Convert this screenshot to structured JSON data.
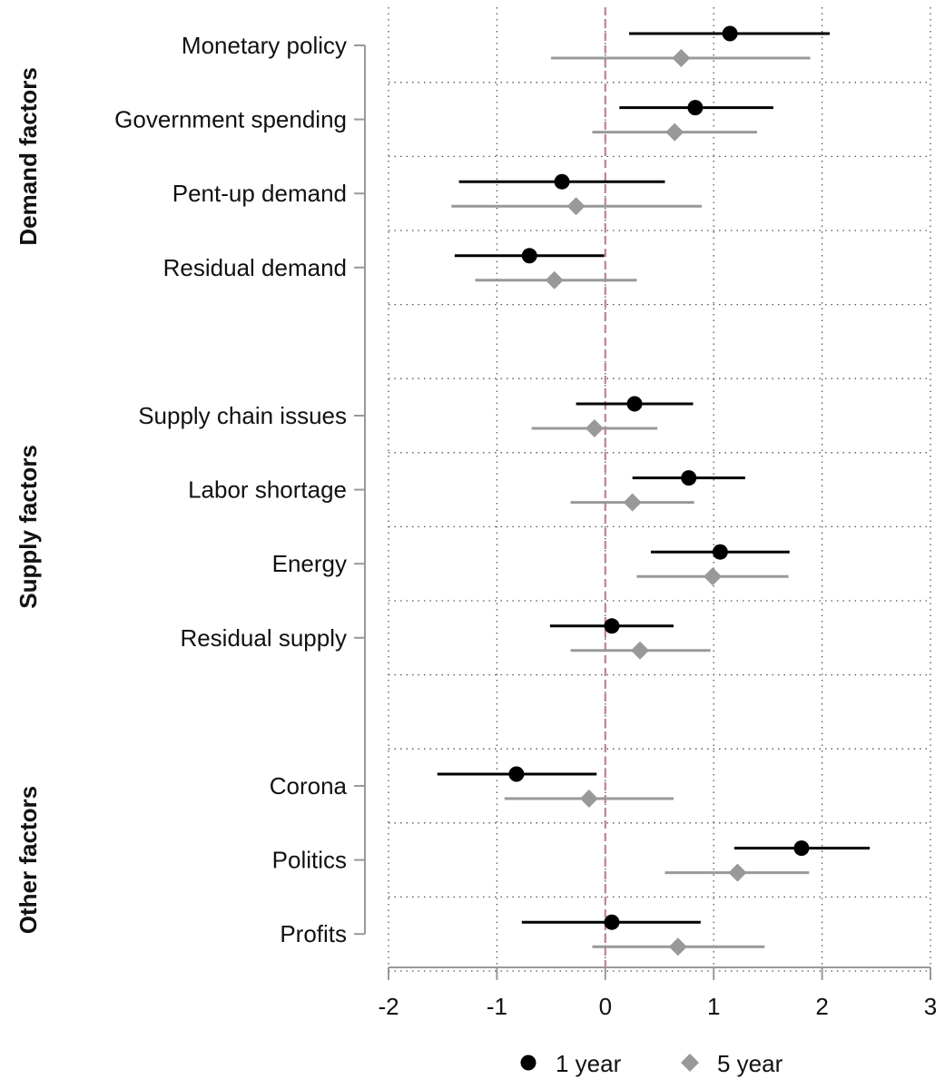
{
  "chart_data": {
    "type": "scatter",
    "orientation": "horizontal-coefficient-plot",
    "xlim": [
      -2,
      3
    ],
    "xticks": [
      -2,
      -1,
      0,
      1,
      2,
      3
    ],
    "xtick_labels": [
      "-2",
      "-1",
      "0",
      "1",
      "2",
      "3"
    ],
    "reference_line_x": 0,
    "grid": true,
    "legend_position": "bottom",
    "colors": {
      "one_year": "#000000",
      "five_year": "#999999",
      "reference_line": "#c0809a",
      "grid": "#555555",
      "axis": "#999999"
    },
    "groups": [
      {
        "label": "Demand factors",
        "items": [
          "Monetary policy",
          "Government spending",
          "Pent-up demand",
          "Residual demand"
        ]
      },
      {
        "label": "Supply factors",
        "items": [
          "Supply chain issues",
          "Labor shortage",
          "Energy",
          "Residual supply"
        ]
      },
      {
        "label": "Other factors",
        "items": [
          "Corona",
          "Politics",
          "Profits"
        ]
      }
    ],
    "categories": [
      "Monetary policy",
      "Government spending",
      "Pent-up demand",
      "Residual demand",
      "Supply chain issues",
      "Labor shortage",
      "Energy",
      "Residual supply",
      "Corona",
      "Politics",
      "Profits"
    ],
    "series": [
      {
        "name": "1 year",
        "marker": "circle",
        "estimates": [
          1.15,
          0.83,
          -0.4,
          -0.7,
          0.27,
          0.77,
          1.06,
          0.06,
          -0.82,
          1.81,
          0.06
        ],
        "ci_low": [
          0.22,
          0.13,
          -1.35,
          -1.39,
          -0.27,
          0.25,
          0.42,
          -0.51,
          -1.55,
          1.19,
          -0.77
        ],
        "ci_high": [
          2.07,
          1.55,
          0.55,
          -0.01,
          0.81,
          1.29,
          1.7,
          0.63,
          -0.08,
          2.44,
          0.88
        ]
      },
      {
        "name": "5 year",
        "marker": "diamond",
        "estimates": [
          0.7,
          0.64,
          -0.27,
          -0.47,
          -0.1,
          0.25,
          0.99,
          0.32,
          -0.15,
          1.22,
          0.67
        ],
        "ci_low": [
          -0.5,
          -0.12,
          -1.42,
          -1.2,
          -0.68,
          -0.32,
          0.29,
          -0.32,
          -0.93,
          0.55,
          -0.12
        ],
        "ci_high": [
          1.89,
          1.4,
          0.89,
          0.29,
          0.48,
          0.82,
          1.69,
          0.97,
          0.63,
          1.88,
          1.47
        ]
      }
    ]
  }
}
